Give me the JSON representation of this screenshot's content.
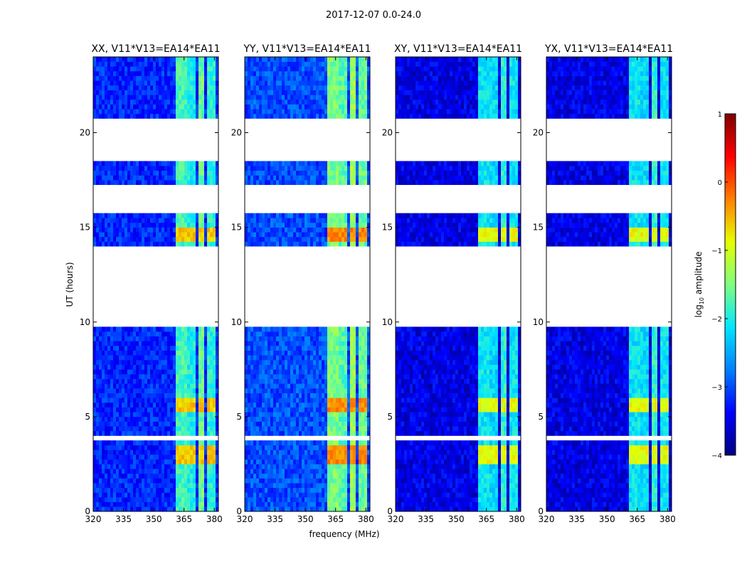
{
  "figure": {
    "suptitle": "2017-12-07 0.0-24.0",
    "colorscale": [
      "#00007f",
      "#0000ff",
      "#007fff",
      "#00e6ff",
      "#7fff7f",
      "#e6ff00",
      "#ff7f00",
      "#ff0000",
      "#7f0000"
    ]
  },
  "chart_data": {
    "type": "heatmap",
    "title": "2017-12-07 0.0-24.0",
    "xlabel": "frequency (MHz)",
    "ylabel": "UT (hours)",
    "xlim": [
      320,
      382
    ],
    "ylim": [
      0,
      24
    ],
    "x_ticks": [
      "320",
      "335",
      "350",
      "365",
      "380"
    ],
    "x_tick_values": [
      320,
      335,
      350,
      365,
      380
    ],
    "y_ticks": [
      "0",
      "5",
      "10",
      "15",
      "20"
    ],
    "y_tick_values": [
      0,
      5,
      10,
      15,
      20
    ],
    "colorbar": {
      "label": "log",
      "label_sub": "10",
      "label_rest": " amplitude",
      "range": [
        -4,
        1
      ],
      "ticks": [
        "−4",
        "−3",
        "−2",
        "−1",
        "0",
        "1"
      ],
      "tick_values": [
        -4,
        -3,
        -2,
        -1,
        0,
        1
      ]
    },
    "data_time_ranges_hours": [
      [
        0,
        3.8
      ],
      [
        3.9,
        9.8
      ],
      [
        14.0,
        15.8
      ],
      [
        17.2,
        18.4
      ],
      [
        20.7,
        24.0
      ]
    ],
    "strong_frequency_bands_mhz": [
      [
        361.5,
        366
      ],
      [
        367,
        371
      ],
      [
        372,
        375.5
      ],
      [
        376.5,
        380
      ]
    ],
    "panels": [
      {
        "title": "XX, V11*V13=EA14*EA11",
        "background_level": -3.2,
        "band_levels": [
          -1.8,
          -2.0,
          -1.6,
          -1.9
        ],
        "peak_level": -0.6
      },
      {
        "title": "YY, V11*V13=EA14*EA11",
        "background_level": -3.0,
        "band_levels": [
          -1.5,
          -1.7,
          -1.3,
          -1.6
        ],
        "peak_level": -0.3
      },
      {
        "title": "XY, V11*V13=EA14*EA11",
        "background_level": -3.5,
        "band_levels": [
          -2.1,
          -2.2,
          -1.9,
          -2.1
        ],
        "peak_level": -0.9
      },
      {
        "title": "YX, V11*V13=EA14*EA11",
        "background_level": -3.5,
        "band_levels": [
          -2.1,
          -2.2,
          -1.9,
          -2.1
        ],
        "peak_level": -0.9
      }
    ]
  }
}
